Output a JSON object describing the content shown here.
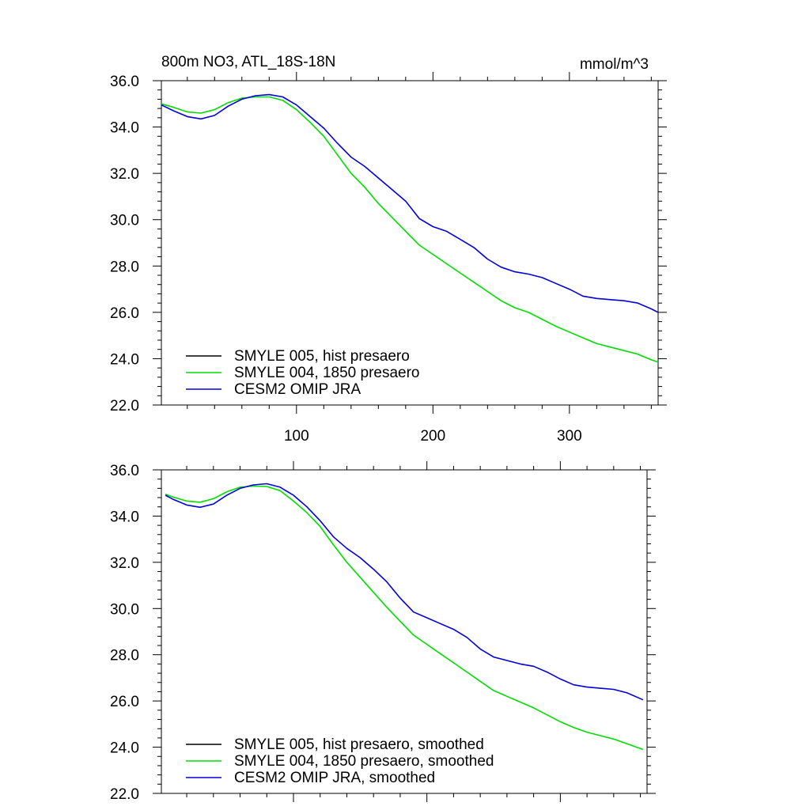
{
  "chart_data": [
    {
      "type": "line",
      "title": "800m NO3, ATL_18S-18N",
      "units_label": "mmol/m^3",
      "xlabel": "",
      "ylabel": "",
      "xlim": [
        1,
        365
      ],
      "ylim": [
        22.0,
        36.0
      ],
      "x_ticks": [
        100,
        200,
        300
      ],
      "x_tick_labels": [
        "100",
        "200",
        "300"
      ],
      "y_ticks": [
        22.0,
        24.0,
        26.0,
        28.0,
        30.0,
        32.0,
        34.0,
        36.0
      ],
      "y_tick_labels": [
        "22.0",
        "24.0",
        "26.0",
        "28.0",
        "30.0",
        "32.0",
        "34.0",
        "36.0"
      ],
      "grid": false,
      "legend_position": "bottom-left",
      "series": [
        {
          "name": "SMYLE 005, hist presaero",
          "color": "#000000",
          "x": [],
          "values": []
        },
        {
          "name": "SMYLE 004, 1850 presaero",
          "color": "#00dd00",
          "x": [
            1,
            10,
            20,
            30,
            40,
            50,
            60,
            70,
            80,
            90,
            100,
            110,
            120,
            130,
            140,
            150,
            160,
            170,
            180,
            190,
            200,
            210,
            220,
            230,
            240,
            250,
            260,
            270,
            280,
            290,
            300,
            310,
            320,
            330,
            340,
            350,
            360,
            365
          ],
          "values": [
            35.0,
            34.85,
            34.65,
            34.6,
            34.75,
            35.05,
            35.25,
            35.3,
            35.3,
            35.15,
            34.75,
            34.2,
            33.6,
            32.8,
            32.0,
            31.4,
            30.7,
            30.1,
            29.5,
            28.9,
            28.5,
            28.1,
            27.7,
            27.3,
            26.9,
            26.5,
            26.2,
            26.0,
            25.7,
            25.4,
            25.15,
            24.9,
            24.65,
            24.5,
            24.35,
            24.2,
            23.95,
            23.85
          ]
        },
        {
          "name": "CESM2 OMIP JRA",
          "color": "#0000dd",
          "x": [
            1,
            10,
            20,
            30,
            40,
            50,
            60,
            70,
            80,
            90,
            100,
            110,
            120,
            130,
            140,
            150,
            160,
            170,
            180,
            190,
            200,
            210,
            220,
            230,
            240,
            250,
            260,
            270,
            280,
            290,
            300,
            310,
            320,
            330,
            340,
            350,
            360,
            365
          ],
          "values": [
            34.95,
            34.7,
            34.45,
            34.35,
            34.5,
            34.9,
            35.2,
            35.35,
            35.4,
            35.3,
            34.95,
            34.45,
            33.95,
            33.3,
            32.7,
            32.3,
            31.8,
            31.3,
            30.8,
            30.05,
            29.7,
            29.5,
            29.15,
            28.8,
            28.3,
            27.95,
            27.75,
            27.65,
            27.5,
            27.25,
            27.0,
            26.7,
            26.6,
            26.55,
            26.5,
            26.4,
            26.15,
            26.0
          ]
        }
      ]
    },
    {
      "type": "line",
      "title": "",
      "units_label": "",
      "xlabel": "",
      "ylabel": "",
      "xlim": [
        1,
        365
      ],
      "ylim": [
        22.0,
        36.0
      ],
      "x_ticks": [
        100,
        200,
        300
      ],
      "x_tick_labels": [],
      "y_ticks": [
        22.0,
        24.0,
        26.0,
        28.0,
        30.0,
        32.0,
        34.0,
        36.0
      ],
      "y_tick_labels": [
        "22.0",
        "24.0",
        "26.0",
        "28.0",
        "30.0",
        "32.0",
        "34.0",
        "36.0"
      ],
      "grid": false,
      "legend_position": "bottom-left",
      "series": [
        {
          "name": "SMYLE 005, hist presaero, smoothed",
          "color": "#000000",
          "x": [],
          "values": []
        },
        {
          "name": "SMYLE 004, 1850 presaero, smoothed",
          "color": "#00dd00",
          "x": [
            4,
            10,
            20,
            30,
            40,
            50,
            60,
            70,
            80,
            90,
            100,
            110,
            120,
            130,
            140,
            150,
            160,
            170,
            180,
            190,
            200,
            210,
            220,
            230,
            240,
            250,
            260,
            270,
            280,
            290,
            300,
            310,
            320,
            330,
            340,
            350,
            362
          ],
          "values": [
            34.95,
            34.82,
            34.65,
            34.6,
            34.75,
            35.05,
            35.25,
            35.3,
            35.28,
            35.1,
            34.65,
            34.15,
            33.55,
            32.75,
            32.0,
            31.35,
            30.7,
            30.05,
            29.45,
            28.85,
            28.45,
            28.05,
            27.65,
            27.25,
            26.85,
            26.45,
            26.2,
            25.95,
            25.7,
            25.4,
            25.1,
            24.85,
            24.65,
            24.5,
            24.35,
            24.15,
            23.9
          ]
        },
        {
          "name": "CESM2 OMIP JRA, smoothed",
          "color": "#0000dd",
          "x": [
            4,
            10,
            20,
            30,
            40,
            50,
            60,
            70,
            80,
            90,
            100,
            110,
            120,
            130,
            140,
            150,
            160,
            170,
            180,
            190,
            200,
            210,
            220,
            230,
            240,
            250,
            260,
            270,
            280,
            290,
            300,
            310,
            320,
            330,
            340,
            350,
            362
          ],
          "values": [
            34.9,
            34.72,
            34.48,
            34.38,
            34.52,
            34.9,
            35.2,
            35.35,
            35.4,
            35.25,
            34.9,
            34.4,
            33.8,
            33.1,
            32.6,
            32.2,
            31.7,
            31.15,
            30.45,
            29.85,
            29.6,
            29.35,
            29.1,
            28.75,
            28.25,
            27.9,
            27.75,
            27.6,
            27.5,
            27.25,
            26.95,
            26.7,
            26.6,
            26.55,
            26.5,
            26.35,
            26.05
          ]
        }
      ]
    }
  ]
}
